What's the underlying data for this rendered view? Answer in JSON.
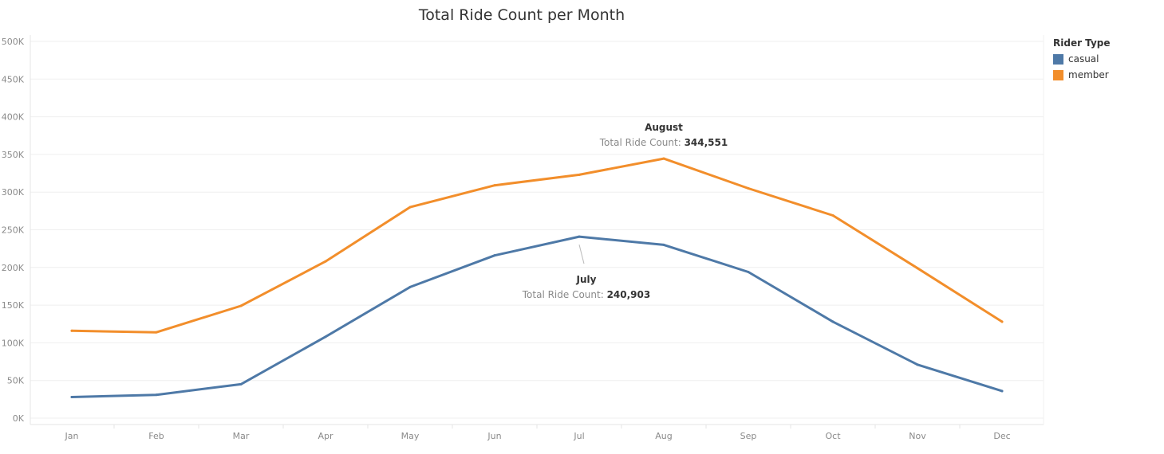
{
  "chart_data": {
    "type": "line",
    "title": "Total Ride Count per Month",
    "xlabel": "",
    "ylabel": "",
    "categories": [
      "Jan",
      "Feb",
      "Mar",
      "Apr",
      "May",
      "Jun",
      "Jul",
      "Aug",
      "Sep",
      "Oct",
      "Nov",
      "Dec"
    ],
    "y_ticks": [
      0,
      50000,
      100000,
      150000,
      200000,
      250000,
      300000,
      350000,
      400000,
      450000,
      500000
    ],
    "y_tick_labels": [
      "0K",
      "50K",
      "100K",
      "150K",
      "200K",
      "250K",
      "300K",
      "350K",
      "400K",
      "450K",
      "500K"
    ],
    "ylim": [
      0,
      500000
    ],
    "grid": true,
    "legend": {
      "title": "Rider Type",
      "placement": "top-right"
    },
    "series": [
      {
        "name": "casual",
        "color": "#4e79a7",
        "values": [
          28000,
          31000,
          45000,
          108000,
          174000,
          216000,
          240903,
          230000,
          194000,
          128000,
          71000,
          36000
        ]
      },
      {
        "name": "member",
        "color": "#f28e2b",
        "values": [
          116000,
          114000,
          149000,
          208000,
          280000,
          309000,
          323000,
          344551,
          305000,
          269000,
          199000,
          128000
        ]
      }
    ],
    "annotations": [
      {
        "series": 1,
        "index": 7,
        "title": "August",
        "key": "Total Ride Count:",
        "value": "344,551"
      },
      {
        "series": 0,
        "index": 6,
        "title": "July",
        "key": "Total Ride Count:",
        "value": "240,903"
      }
    ]
  }
}
